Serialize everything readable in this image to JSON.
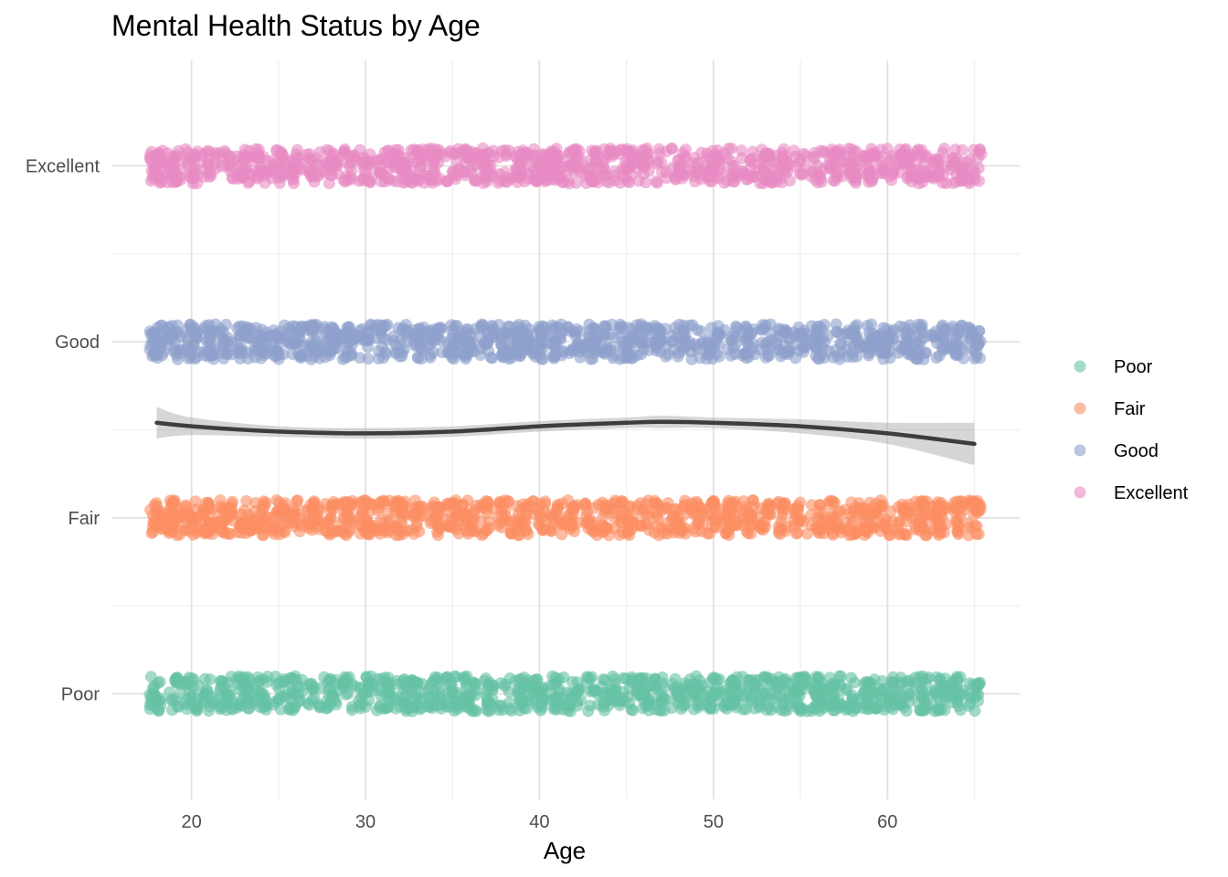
{
  "chart_data": {
    "type": "scatter",
    "title": "Mental Health Status by Age",
    "xlabel": "Age",
    "ylabel": "",
    "xlim": [
      15.4,
      67.6
    ],
    "x_ticks": [
      20,
      30,
      40,
      50,
      60
    ],
    "x_tick_labels": [
      "20",
      "30",
      "40",
      "50",
      "60"
    ],
    "categories": [
      "Poor",
      "Fair",
      "Good",
      "Excellent"
    ],
    "y_tick_labels": [
      "Poor",
      "Fair",
      "Good",
      "Excellent"
    ],
    "ylim": [
      0.4,
      4.6
    ],
    "grid": true,
    "legend_position": "right",
    "series": [
      {
        "name": "Poor",
        "category": 1,
        "color": "#66c2a5",
        "x_range": [
          18,
          65
        ],
        "jitter_x": 0.4,
        "jitter_y": 0.1
      },
      {
        "name": "Fair",
        "category": 2,
        "color": "#fc8d62",
        "x_range": [
          18,
          65
        ],
        "jitter_x": 0.4,
        "jitter_y": 0.1
      },
      {
        "name": "Good",
        "category": 3,
        "color": "#8da0cb",
        "x_range": [
          18,
          65
        ],
        "jitter_x": 0.4,
        "jitter_y": 0.1
      },
      {
        "name": "Excellent",
        "category": 4,
        "color": "#e78ac3",
        "x_range": [
          18,
          65
        ],
        "jitter_x": 0.4,
        "jitter_y": 0.1
      }
    ],
    "smooth": {
      "color": "#3d3d3d",
      "band_color": "#999999",
      "x": [
        18,
        20,
        25,
        30,
        35,
        40,
        45,
        47,
        50,
        55,
        60,
        65
      ],
      "y": [
        2.54,
        2.52,
        2.49,
        2.48,
        2.49,
        2.52,
        2.54,
        2.545,
        2.54,
        2.52,
        2.48,
        2.42
      ],
      "lower": [
        2.45,
        2.47,
        2.46,
        2.45,
        2.46,
        2.49,
        2.51,
        2.51,
        2.51,
        2.48,
        2.42,
        2.3
      ],
      "upper": [
        2.63,
        2.57,
        2.52,
        2.51,
        2.52,
        2.55,
        2.57,
        2.58,
        2.57,
        2.56,
        2.54,
        2.54
      ]
    }
  }
}
